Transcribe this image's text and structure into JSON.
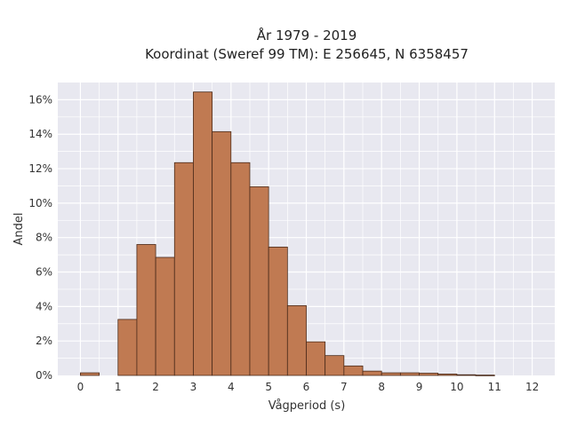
{
  "chart_data": {
    "type": "bar",
    "title_line1": "År 1979 - 2019",
    "title_line2": "Koordinat (Sweref 99 TM): E 256645, N 6358457",
    "xlabel": "Vågperiod (s)",
    "ylabel": "Andel",
    "xlim": [
      -0.6,
      12.6
    ],
    "ylim": [
      0,
      0.17
    ],
    "bin_width": 0.5,
    "bins": [
      {
        "start": 0.0,
        "value": 0.0015
      },
      {
        "start": 0.5,
        "value": 0.0
      },
      {
        "start": 1.0,
        "value": 0.0325
      },
      {
        "start": 1.5,
        "value": 0.076
      },
      {
        "start": 2.0,
        "value": 0.0685
      },
      {
        "start": 2.5,
        "value": 0.1235
      },
      {
        "start": 3.0,
        "value": 0.1645
      },
      {
        "start": 3.5,
        "value": 0.1415
      },
      {
        "start": 4.0,
        "value": 0.1235
      },
      {
        "start": 4.5,
        "value": 0.1095
      },
      {
        "start": 5.0,
        "value": 0.0745
      },
      {
        "start": 5.5,
        "value": 0.0405
      },
      {
        "start": 6.0,
        "value": 0.0195
      },
      {
        "start": 6.5,
        "value": 0.0115
      },
      {
        "start": 7.0,
        "value": 0.0055
      },
      {
        "start": 7.5,
        "value": 0.0025
      },
      {
        "start": 8.0,
        "value": 0.0015
      },
      {
        "start": 8.5,
        "value": 0.0015
      },
      {
        "start": 9.0,
        "value": 0.0013
      },
      {
        "start": 9.5,
        "value": 0.0008
      },
      {
        "start": 10.0,
        "value": 0.0004
      },
      {
        "start": 10.5,
        "value": 0.0002
      },
      {
        "start": 11.0,
        "value": 0.0
      },
      {
        "start": 11.5,
        "value": 0.0
      }
    ],
    "xticks": [
      0,
      1,
      2,
      3,
      4,
      5,
      6,
      7,
      8,
      9,
      10,
      11,
      12
    ],
    "yticks": [
      0,
      0.02,
      0.04,
      0.06,
      0.08,
      0.1,
      0.12,
      0.14,
      0.16
    ],
    "ytick_labels": [
      "0%",
      "2%",
      "4%",
      "6%",
      "8%",
      "10%",
      "12%",
      "14%",
      "16%"
    ],
    "grid": true,
    "colors": {
      "bar_fill": "#c07a52",
      "bar_stroke": "#4a2a1a",
      "plot_bg": "#e8e8f0",
      "grid": "#ffffff"
    }
  }
}
